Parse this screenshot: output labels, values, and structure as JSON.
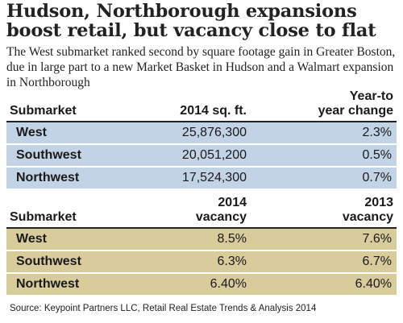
{
  "title": "Hudson, Northborough expansions boost retail, but vacancy close to flat",
  "subtitle": "The West submarket ranked second by square footage gain in Greater Boston, due in large part to a new Market Basket in Hudson and a Walmart expansion in Northborough",
  "table1": {
    "headers": [
      "Submarket",
      "2014 sq. ft.",
      "Year-to year change"
    ],
    "header_lines": {
      "change_1": "Year-to",
      "change_2": "year change"
    },
    "rows": [
      {
        "submarket": "West",
        "sqft": "25,876,300",
        "change": "2.3%"
      },
      {
        "submarket": "Southwest",
        "sqft": "20,051,200",
        "change": "0.5%"
      },
      {
        "submarket": "Northwest",
        "sqft": "17,524,300",
        "change": "0.7%"
      }
    ]
  },
  "table2": {
    "headers": [
      "Submarket",
      "2014 vacancy",
      "2013 vacancy"
    ],
    "header_lines": {
      "v2014_1": "2014",
      "v2014_2": "vacancy",
      "v2013_1": "2013",
      "v2013_2": "vacancy"
    },
    "rows": [
      {
        "submarket": "West",
        "v2014": "8.5%",
        "v2013": "7.6%"
      },
      {
        "submarket": "Southwest",
        "v2014": "6.3%",
        "v2013": "6.7%"
      },
      {
        "submarket": "Northwest",
        "v2014": "6.40%",
        "v2013": "6.40%"
      }
    ]
  },
  "source": "Source: Keypoint Partners LLC, Retail Real Estate Trends & Analysis 2014",
  "colors": {
    "table1_row": "#c3d3e6",
    "table2_row": "#d8cb9c"
  },
  "chart_data": [
    {
      "type": "table",
      "columns": [
        "Submarket",
        "2014 sq. ft.",
        "Year-to year change"
      ],
      "rows": [
        [
          "West",
          25876300,
          2.3
        ],
        [
          "Southwest",
          20051200,
          0.5
        ],
        [
          "Northwest",
          17524300,
          0.7
        ]
      ]
    },
    {
      "type": "table",
      "columns": [
        "Submarket",
        "2014 vacancy",
        "2013 vacancy"
      ],
      "rows": [
        [
          "West",
          8.5,
          7.6
        ],
        [
          "Southwest",
          6.3,
          6.7
        ],
        [
          "Northwest",
          6.4,
          6.4
        ]
      ]
    }
  ]
}
